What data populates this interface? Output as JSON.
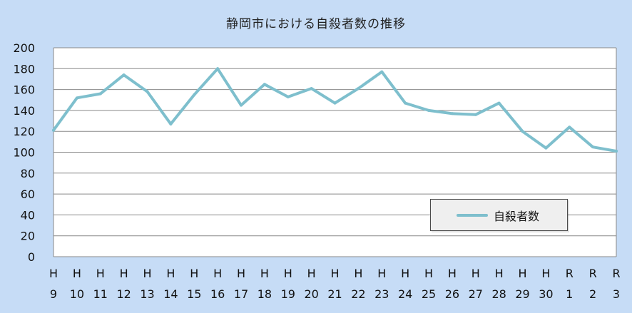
{
  "chart_data": {
    "type": "line",
    "title": "静岡市における自殺者数の推移",
    "xlabel": "",
    "ylabel": "",
    "ylim": [
      0,
      200
    ],
    "yticks": [
      "0",
      "20",
      "40",
      "60",
      "80",
      "100",
      "120",
      "140",
      "160",
      "180",
      "200"
    ],
    "grid": true,
    "legend_position": "bottom-right",
    "categories": [
      [
        "H",
        "9"
      ],
      [
        "H",
        "10"
      ],
      [
        "H",
        "11"
      ],
      [
        "H",
        "12"
      ],
      [
        "H",
        "13"
      ],
      [
        "H",
        "14"
      ],
      [
        "H",
        "15"
      ],
      [
        "H",
        "16"
      ],
      [
        "H",
        "17"
      ],
      [
        "H",
        "18"
      ],
      [
        "H",
        "19"
      ],
      [
        "H",
        "20"
      ],
      [
        "H",
        "21"
      ],
      [
        "H",
        "22"
      ],
      [
        "H",
        "23"
      ],
      [
        "H",
        "24"
      ],
      [
        "H",
        "25"
      ],
      [
        "H",
        "26"
      ],
      [
        "H",
        "27"
      ],
      [
        "H",
        "28"
      ],
      [
        "H",
        "29"
      ],
      [
        "H",
        "30"
      ],
      [
        "R",
        "1"
      ],
      [
        "R",
        "2"
      ],
      [
        "R",
        "3"
      ]
    ],
    "series": [
      {
        "name": "自殺者数",
        "color": "#7ebfcd",
        "values": [
          121,
          152,
          156,
          174,
          158,
          127,
          155,
          180,
          145,
          165,
          153,
          161,
          147,
          161,
          177,
          147,
          140,
          137,
          136,
          147,
          120,
          104,
          124,
          105,
          101
        ]
      }
    ],
    "plot_background": "#ffffff",
    "gridline_color": "#8a8a8a"
  }
}
